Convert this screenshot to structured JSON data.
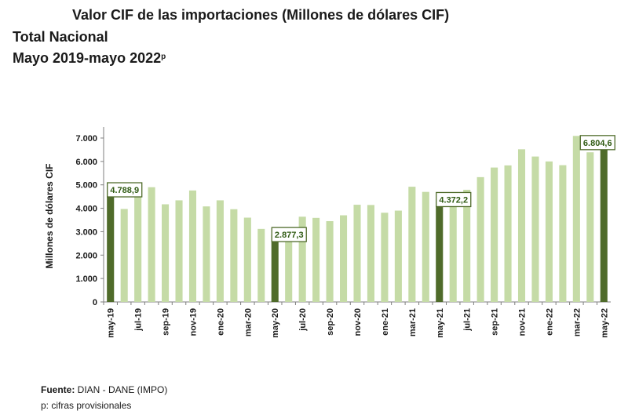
{
  "header": {
    "title": "Valor CIF de las importaciones (Millones de dólares CIF)",
    "subtitle1": "Total Nacional",
    "subtitle2_main": "Mayo 2019-mayo 2022",
    "subtitle2_sup": "p"
  },
  "footer": {
    "source_label": "Fuente:",
    "source_text": " DIAN - DANE (IMPO)",
    "note": "p: cifras provisionales"
  },
  "colors": {
    "bar_light": "#c5dba6",
    "bar_dark": "#4f6b2a",
    "label_border": "#4f6b2a",
    "label_text": "#2f5a12"
  },
  "chart_data": {
    "type": "bar",
    "title": "",
    "xlabel": "",
    "ylabel": "Millones de dólares CIF",
    "ylim": [
      0,
      7000
    ],
    "yticks": [
      "0",
      "1.000",
      "2.000",
      "3.000",
      "4.000",
      "5.000",
      "6.000",
      "7.000"
    ],
    "grid": false,
    "categories": [
      "may-19",
      "jun-19",
      "jul-19",
      "ago-19",
      "sep-19",
      "oct-19",
      "nov-19",
      "dic-19",
      "ene-20",
      "feb-20",
      "mar-20",
      "abr-20",
      "may-20",
      "jun-20",
      "jul-20",
      "ago-20",
      "sep-20",
      "oct-20",
      "nov-20",
      "dic-20",
      "ene-21",
      "feb-21",
      "mar-21",
      "abr-21",
      "may-21",
      "jun-21",
      "jul-21",
      "ago-21",
      "sep-21",
      "oct-21",
      "nov-21",
      "dic-21",
      "ene-22",
      "feb-22",
      "mar-22",
      "abr-22",
      "may-22"
    ],
    "tick_labels": [
      "may-19",
      "",
      "jul-19",
      "",
      "sep-19",
      "",
      "nov-19",
      "",
      "ene-20",
      "",
      "mar-20",
      "",
      "may-20",
      "",
      "jul-20",
      "",
      "sep-20",
      "",
      "nov-20",
      "",
      "ene-21",
      "",
      "mar-21",
      "",
      "may-21",
      "",
      "jul-21",
      "",
      "sep-21",
      "",
      "nov-21",
      "",
      "ene-22",
      "",
      "mar-22",
      "",
      "may-22"
    ],
    "values": [
      4788.9,
      3970,
      4520,
      4900,
      4170,
      4340,
      4760,
      4080,
      4340,
      3960,
      3600,
      3120,
      2877.3,
      3020,
      3640,
      3590,
      3450,
      3700,
      4150,
      4140,
      3810,
      3900,
      4920,
      4700,
      4372.2,
      4480,
      4790,
      5330,
      5740,
      5830,
      6520,
      6210,
      6000,
      5840,
      7090,
      6390,
      6804.6
    ],
    "highlight_indices": [
      0,
      12,
      24,
      36
    ],
    "data_labels": [
      {
        "index": 0,
        "text": "4.788,9"
      },
      {
        "index": 12,
        "text": "2.877,3"
      },
      {
        "index": 24,
        "text": "4.372,2"
      },
      {
        "index": 36,
        "text": "6.804,6"
      }
    ]
  }
}
